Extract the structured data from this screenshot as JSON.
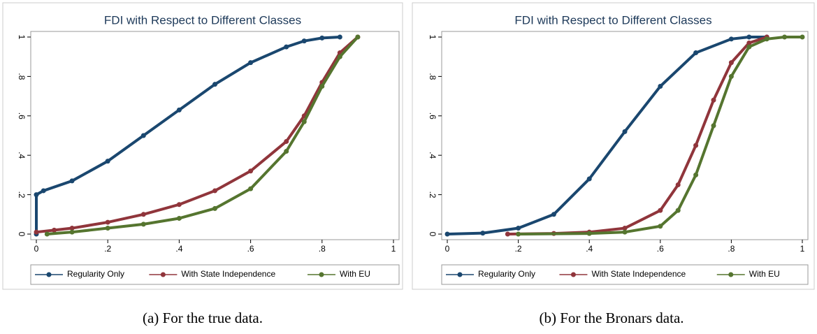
{
  "chart_data": [
    {
      "type": "line",
      "title": "FDI with Respect to Different Classes",
      "xlim": [
        0,
        1
      ],
      "ylim": [
        0,
        1
      ],
      "xticks": [
        0,
        {
          "value": 0.2,
          "label": ".2"
        },
        {
          "value": 0.4,
          "label": ".4"
        },
        {
          "value": 0.6,
          "label": ".6"
        },
        {
          "value": 0.8,
          "label": ".8"
        },
        1
      ],
      "yticks": [
        0,
        {
          "value": 0.2,
          "label": ".2"
        },
        {
          "value": 0.4,
          "label": ".4"
        },
        {
          "value": 0.6,
          "label": ".6"
        },
        {
          "value": 0.8,
          "label": ".8"
        },
        1
      ],
      "legend": "bottom",
      "series": [
        {
          "name": "Regularity Only",
          "color": "#1a476f",
          "x": [
            0,
            0,
            0.02,
            0.1,
            0.2,
            0.3,
            0.4,
            0.5,
            0.6,
            0.7,
            0.75,
            0.8,
            0.85
          ],
          "values": [
            0,
            0.2,
            0.22,
            0.27,
            0.37,
            0.5,
            0.63,
            0.76,
            0.87,
            0.95,
            0.98,
            0.995,
            1
          ]
        },
        {
          "name": "With State Independence",
          "color": "#90353b",
          "x": [
            0,
            0.05,
            0.1,
            0.2,
            0.3,
            0.4,
            0.5,
            0.6,
            0.7,
            0.75,
            0.8,
            0.85,
            0.9
          ],
          "values": [
            0.01,
            0.02,
            0.03,
            0.06,
            0.1,
            0.15,
            0.22,
            0.32,
            0.47,
            0.6,
            0.77,
            0.92,
            1
          ]
        },
        {
          "name": "With EU",
          "color": "#55752f",
          "x": [
            0.03,
            0.1,
            0.2,
            0.3,
            0.4,
            0.5,
            0.6,
            0.7,
            0.75,
            0.8,
            0.85,
            0.9
          ],
          "values": [
            0,
            0.01,
            0.03,
            0.05,
            0.08,
            0.13,
            0.23,
            0.42,
            0.57,
            0.75,
            0.9,
            1
          ]
        }
      ]
    },
    {
      "type": "line",
      "title": "FDI with Respect to Different Classes",
      "xlim": [
        0,
        1
      ],
      "ylim": [
        0,
        1
      ],
      "xticks": [
        0,
        {
          "value": 0.2,
          "label": ".2"
        },
        {
          "value": 0.4,
          "label": ".4"
        },
        {
          "value": 0.6,
          "label": ".6"
        },
        {
          "value": 0.8,
          "label": ".8"
        },
        1
      ],
      "yticks": [
        0,
        {
          "value": 0.2,
          "label": ".2"
        },
        {
          "value": 0.4,
          "label": ".4"
        },
        {
          "value": 0.6,
          "label": ".6"
        },
        {
          "value": 0.8,
          "label": ".8"
        },
        1
      ],
      "legend": "bottom",
      "series": [
        {
          "name": "Regularity Only",
          "color": "#1a476f",
          "x": [
            0,
            0.1,
            0.2,
            0.3,
            0.4,
            0.5,
            0.6,
            0.7,
            0.8,
            0.85,
            0.9
          ],
          "values": [
            0,
            0.005,
            0.03,
            0.1,
            0.28,
            0.52,
            0.75,
            0.92,
            0.99,
            1,
            1
          ]
        },
        {
          "name": "With State Independence",
          "color": "#90353b",
          "x": [
            0.17,
            0.3,
            0.4,
            0.5,
            0.6,
            0.65,
            0.7,
            0.75,
            0.8,
            0.85,
            0.9
          ],
          "values": [
            0,
            0.003,
            0.01,
            0.03,
            0.12,
            0.25,
            0.45,
            0.68,
            0.87,
            0.97,
            1
          ]
        },
        {
          "name": "With EU",
          "color": "#55752f",
          "x": [
            0.2,
            0.4,
            0.5,
            0.6,
            0.65,
            0.7,
            0.75,
            0.8,
            0.85,
            0.9,
            0.95,
            1
          ],
          "values": [
            0,
            0.003,
            0.01,
            0.04,
            0.12,
            0.3,
            0.55,
            0.8,
            0.95,
            0.99,
            1,
            1
          ]
        }
      ]
    }
  ],
  "captions": [
    "(a) For the true data.",
    "(b) For the Bronars data."
  ]
}
